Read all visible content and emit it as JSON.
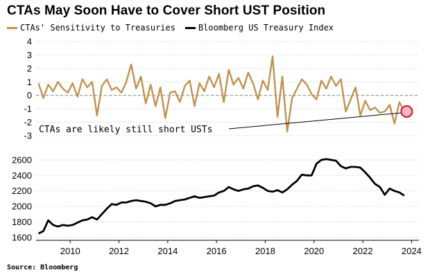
{
  "title": "CTAs May Soon Have to Cover Short UST Position",
  "source": "Source: Bloomberg",
  "chart_data": [
    {
      "type": "line",
      "panel": "top",
      "ylim": [
        -3,
        4
      ],
      "yticks": [
        4,
        3,
        2,
        1,
        0,
        -1,
        -2,
        -3
      ],
      "xlim": [
        2008.6,
        2024.3
      ],
      "reference_line": {
        "y": 0,
        "style": "dashed"
      },
      "series": [
        {
          "name": "CTAs' Sensitivity to Treasuries",
          "color": "#c0924f",
          "x": [
            2008.7,
            2008.9,
            2009.1,
            2009.3,
            2009.5,
            2009.7,
            2009.9,
            2010.1,
            2010.3,
            2010.5,
            2010.7,
            2010.9,
            2011.1,
            2011.3,
            2011.5,
            2011.7,
            2011.9,
            2012.1,
            2012.3,
            2012.5,
            2012.7,
            2012.9,
            2013.1,
            2013.3,
            2013.5,
            2013.7,
            2013.9,
            2014.1,
            2014.3,
            2014.5,
            2014.7,
            2014.9,
            2015.1,
            2015.3,
            2015.5,
            2015.7,
            2015.9,
            2016.1,
            2016.3,
            2016.5,
            2016.7,
            2016.9,
            2017.1,
            2017.3,
            2017.5,
            2017.7,
            2017.9,
            2018.1,
            2018.3,
            2018.5,
            2018.7,
            2018.9,
            2019.1,
            2019.3,
            2019.5,
            2019.7,
            2019.9,
            2020.1,
            2020.3,
            2020.5,
            2020.7,
            2020.9,
            2021.1,
            2021.3,
            2021.5,
            2021.7,
            2021.9,
            2022.1,
            2022.3,
            2022.5,
            2022.7,
            2022.9,
            2023.1,
            2023.3,
            2023.5,
            2023.7
          ],
          "y": [
            0.9,
            -0.2,
            0.8,
            0.3,
            1.0,
            0.5,
            0.2,
            0.9,
            -0.1,
            1.2,
            0.6,
            1.0,
            -1.5,
            0.7,
            1.2,
            0.4,
            0.6,
            0.2,
            1.0,
            2.3,
            0.5,
            1.4,
            -0.6,
            0.8,
            -0.8,
            0.6,
            -1.7,
            0.2,
            0.3,
            -0.5,
            0.7,
            1.1,
            -0.8,
            0.9,
            0.3,
            1.4,
            0.6,
            1.6,
            -0.5,
            1.9,
            0.8,
            1.3,
            0.5,
            1.7,
            0.9,
            -0.3,
            1.1,
            0.4,
            2.9,
            -1.6,
            1.4,
            -2.7,
            -0.2,
            0.5,
            1.2,
            0.8,
            0.1,
            -0.3,
            1.1,
            0.5,
            1.4,
            0.7,
            1.2,
            -1.2,
            -0.3,
            0.6,
            -1.5,
            -0.4,
            -1.1,
            -0.9,
            -1.3,
            -1.2,
            -0.7,
            -2.1,
            -0.5,
            -1.2
          ]
        }
      ],
      "annotation": {
        "text": "CTAs are likely still short USTs",
        "target": {
          "x": 2023.8,
          "y": -1.2
        }
      }
    },
    {
      "type": "line",
      "panel": "bottom",
      "ylim": [
        1580,
        2680
      ],
      "yticks": [
        2600,
        2400,
        2200,
        2000,
        1800,
        1600
      ],
      "xlim": [
        2008.6,
        2024.3
      ],
      "xticks": [
        "2010",
        "2012",
        "2014",
        "2016",
        "2018",
        "2020",
        "2022",
        "2024"
      ],
      "xtick_values": [
        2010,
        2012,
        2014,
        2016,
        2018,
        2020,
        2022,
        2024
      ],
      "series": [
        {
          "name": "Bloomberg US Treasury Index",
          "color": "#000000",
          "x": [
            2008.7,
            2008.9,
            2009.1,
            2009.3,
            2009.5,
            2009.7,
            2009.9,
            2010.1,
            2010.3,
            2010.5,
            2010.7,
            2010.9,
            2011.1,
            2011.3,
            2011.5,
            2011.7,
            2011.9,
            2012.1,
            2012.3,
            2012.5,
            2012.7,
            2012.9,
            2013.1,
            2013.3,
            2013.5,
            2013.7,
            2013.9,
            2014.1,
            2014.3,
            2014.5,
            2014.7,
            2014.9,
            2015.1,
            2015.3,
            2015.5,
            2015.7,
            2015.9,
            2016.1,
            2016.3,
            2016.5,
            2016.7,
            2016.9,
            2017.1,
            2017.3,
            2017.5,
            2017.7,
            2017.9,
            2018.1,
            2018.3,
            2018.5,
            2018.7,
            2018.9,
            2019.1,
            2019.3,
            2019.5,
            2019.7,
            2019.9,
            2020.1,
            2020.3,
            2020.5,
            2020.7,
            2020.9,
            2021.1,
            2021.3,
            2021.5,
            2021.7,
            2021.9,
            2022.1,
            2022.3,
            2022.5,
            2022.7,
            2022.9,
            2023.1,
            2023.3,
            2023.5,
            2023.7
          ],
          "y": [
            1650,
            1680,
            1820,
            1760,
            1740,
            1760,
            1750,
            1760,
            1790,
            1820,
            1830,
            1860,
            1830,
            1900,
            1970,
            2030,
            2020,
            2050,
            2050,
            2070,
            2080,
            2070,
            2060,
            2040,
            2000,
            2020,
            2020,
            2040,
            2070,
            2080,
            2090,
            2110,
            2130,
            2110,
            2120,
            2130,
            2140,
            2180,
            2200,
            2250,
            2220,
            2200,
            2220,
            2230,
            2260,
            2270,
            2240,
            2200,
            2190,
            2210,
            2180,
            2220,
            2280,
            2330,
            2410,
            2400,
            2400,
            2550,
            2600,
            2610,
            2600,
            2590,
            2520,
            2490,
            2510,
            2510,
            2500,
            2440,
            2370,
            2290,
            2250,
            2150,
            2230,
            2200,
            2180,
            2140
          ]
        }
      ]
    }
  ]
}
